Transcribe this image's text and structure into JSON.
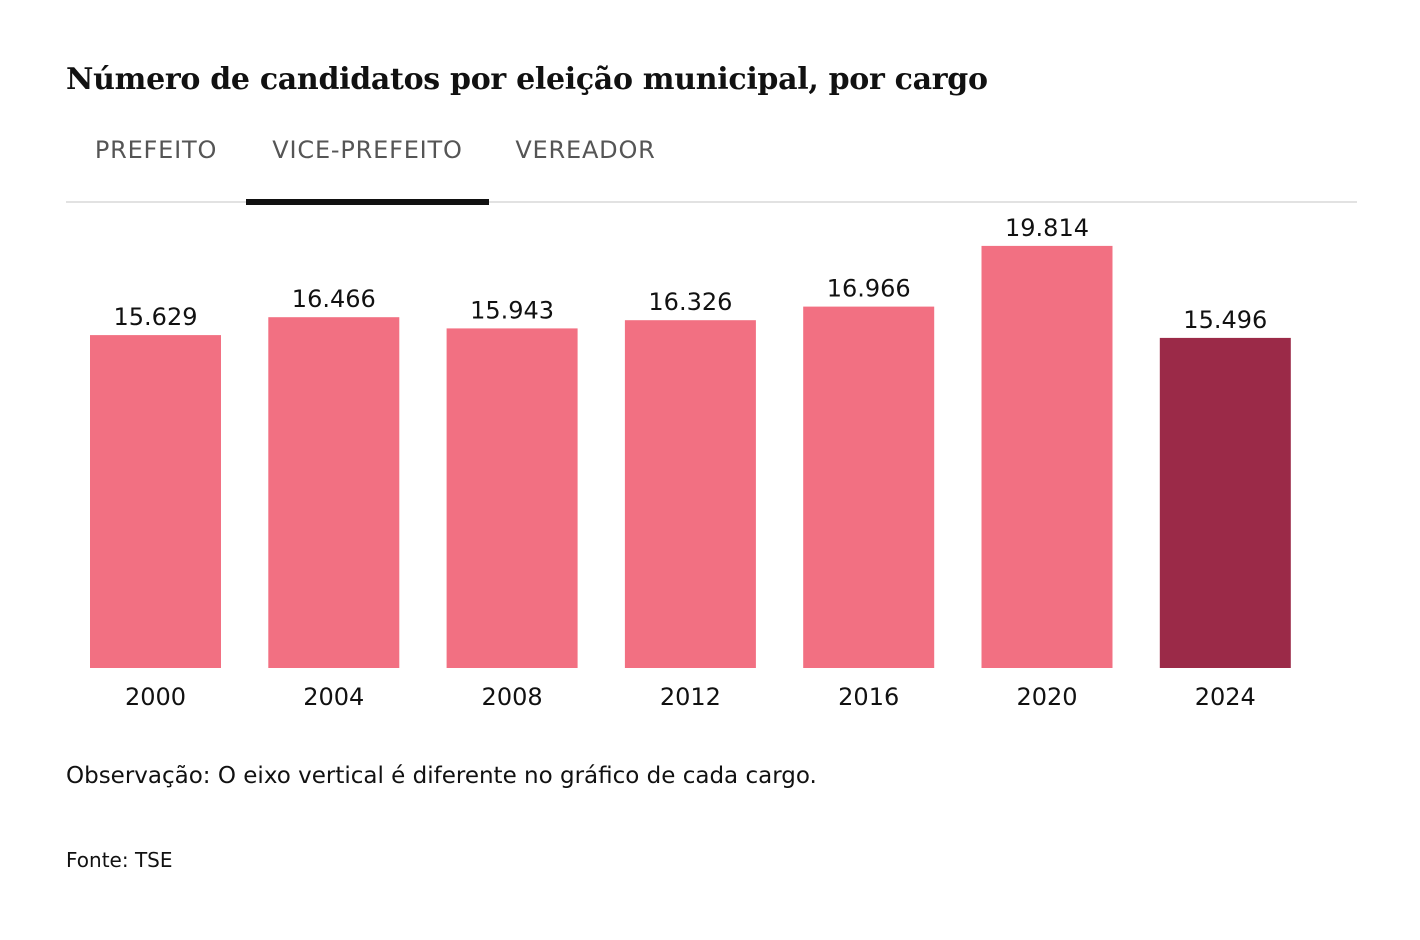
{
  "title": "Número de candidatos por eleição municipal, por cargo",
  "tabs": [
    {
      "label": "PREFEITO",
      "active": false
    },
    {
      "label": "VICE-PREFEITO",
      "active": true
    },
    {
      "label": "VEREADOR",
      "active": false
    }
  ],
  "colors": {
    "bar": "#f27082",
    "bar_highlight": "#9b2a48"
  },
  "chart_data": {
    "type": "bar",
    "title": "Número de candidatos por eleição municipal, por cargo",
    "selected_series": "VICE-PREFEITO",
    "categories": [
      "2000",
      "2004",
      "2008",
      "2012",
      "2016",
      "2020",
      "2024"
    ],
    "values": [
      15629,
      16466,
      15943,
      16326,
      16966,
      19814,
      15496
    ],
    "value_labels": [
      "15.629",
      "16.466",
      "15.943",
      "16.326",
      "16.966",
      "19.814",
      "15.496"
    ],
    "highlight_category": "2024",
    "xlabel": "",
    "ylabel": "",
    "ylim": [
      0,
      21500
    ],
    "grid": false,
    "legend": "none"
  },
  "note": "Observação: O eixo vertical é diferente no gráfico de cada cargo.",
  "source": "Fonte: TSE"
}
